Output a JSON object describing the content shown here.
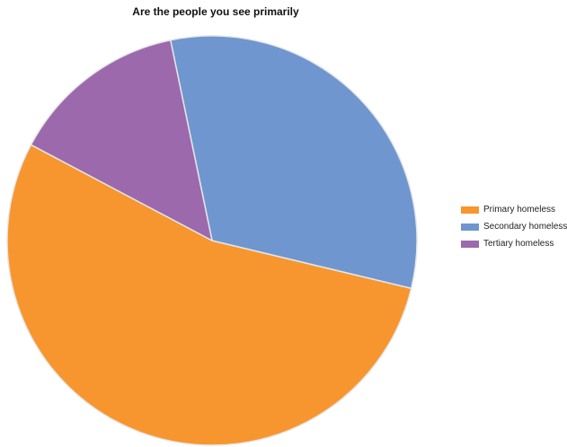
{
  "chart_data": {
    "type": "pie",
    "title": "Are the people you see primarily",
    "categories": [
      "Primary homeless",
      "Secondary homeless",
      "Tertiary homeless"
    ],
    "values": [
      54,
      32,
      14
    ],
    "unit": "%",
    "colors": [
      "#f7962f",
      "#6f96cf",
      "#9c69ac"
    ],
    "legend_position": "right"
  }
}
